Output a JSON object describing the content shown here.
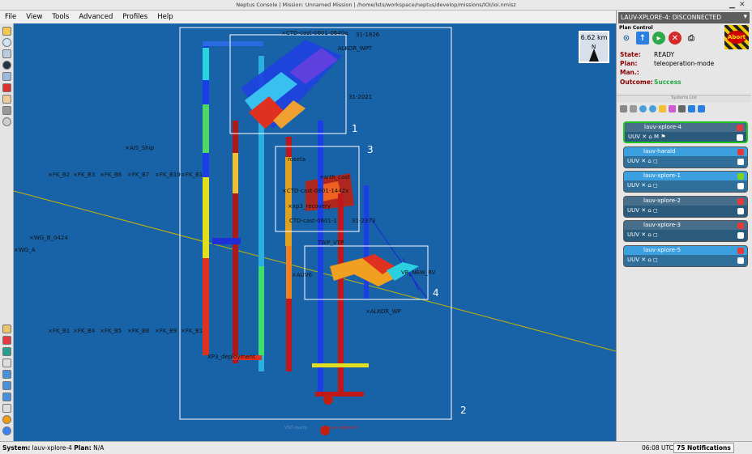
{
  "window": {
    "title": "Neptus Console | Mission: Unnamed Mission | /home/lsts/workspace/neptus/develop/missions/IOI/ioi.nmisz"
  },
  "menu": [
    "File",
    "View",
    "Tools",
    "Advanced",
    "Profiles",
    "Help"
  ],
  "map": {
    "scale_label": "6.62 km",
    "north_label": "N",
    "box_numbers": [
      "1",
      "2",
      "3",
      "4"
    ],
    "labels": [
      "AIS_Ship",
      "FK_B2",
      "FK_B3",
      "FK_B6",
      "FK_B7",
      "FK_B10",
      "FK_B1",
      "FK_B1",
      "FK_B4",
      "FK_B5",
      "FK_B8",
      "FK_B9",
      "FK_B1",
      "WG_B_0424",
      "WG_A",
      "CTD-cast-0601-0640a",
      "31-1826",
      "ALKOR_WPT",
      "31-2021",
      "CTD-cast-0601-1442x",
      "xp3_recovery",
      "CTD-cast-0601-1",
      "31-2373",
      "AUV6",
      "VB_NEW_RV",
      "ALKOR_WP",
      "XP3_deployment",
      "earth_cast",
      "roseta",
      "TWP_VTP",
      "VST-starts",
      "lauv-xplore-5"
    ]
  },
  "plan_control": {
    "title": "Plan Control",
    "system_header": "LAUV-XPLORE-4: DISCONNECTED",
    "abort_label": "Abort",
    "state_label": "State:",
    "state_value": "READY",
    "plan_label": "Plan:",
    "plan_value": "teleoperation-mode",
    "man_label": "Man.:",
    "man_value": "",
    "outcome_label": "Outcome:",
    "outcome_value": "Success"
  },
  "systems_list": {
    "title": "Systems List",
    "systems": [
      {
        "name": "lauv-xplore-4",
        "selected": true,
        "color": "#2a5a7c",
        "border": "#22c422",
        "badge": "#e63a3a"
      },
      {
        "name": "lauv-harald",
        "selected": false,
        "color": "#3c9fe0",
        "border": "#555",
        "badge": "#e63a3a"
      },
      {
        "name": "lauv-xplore-1",
        "selected": false,
        "color": "#3c9fe0",
        "border": "#555",
        "badge": "#7ed321"
      },
      {
        "name": "lauv-xplore-2",
        "selected": false,
        "color": "#2a5a7c",
        "border": "#555",
        "badge": "#e63a3a"
      },
      {
        "name": "lauv-xplore-3",
        "selected": false,
        "color": "#2a5a7c",
        "border": "#555",
        "badge": "#e63a3a"
      },
      {
        "name": "lauv-xplore-5",
        "selected": false,
        "color": "#3c9fe0",
        "border": "#555",
        "badge": "#e63a3a"
      }
    ]
  },
  "status": {
    "system_label": "System:",
    "system_value": "lauv-xplore-4",
    "plan_label": "Plan:",
    "plan_value": "N/A",
    "time": "06:08 UTC",
    "notifications": "75 Notifications"
  },
  "colors": {
    "map_bg": "#1863a8",
    "accent_green": "#22c422",
    "abort_red": "#d10000"
  }
}
